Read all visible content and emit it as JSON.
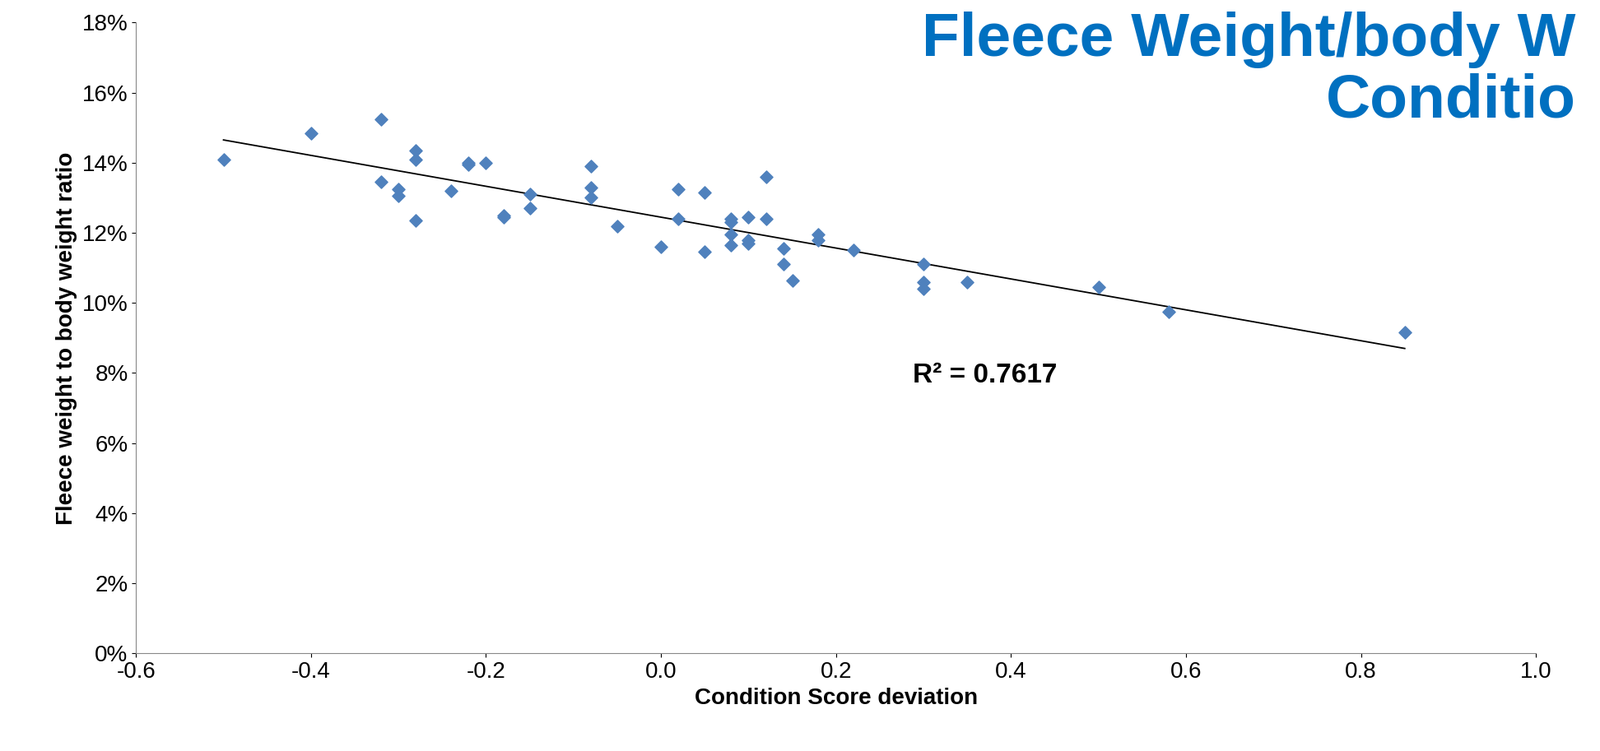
{
  "chart_data": {
    "type": "scatter",
    "title": "Fleece Weight/body W\nConditio",
    "x_label": "Condition Score deviation",
    "y_label": "Fleece weight to body weight ratio",
    "annotations": [
      "R² = 0.7617"
    ],
    "series": [
      {
        "type": "scatter",
        "color": "#4f81bd",
        "marker": "diamond",
        "x": [
          -0.5,
          -0.4,
          -0.32,
          -0.32,
          -0.3,
          -0.3,
          -0.28,
          -0.28,
          -0.28,
          -0.24,
          -0.22,
          -0.22,
          -0.2,
          -0.18,
          -0.18,
          -0.15,
          -0.15,
          -0.08,
          -0.08,
          -0.08,
          -0.05,
          0.0,
          0.02,
          0.02,
          0.05,
          0.05,
          0.08,
          0.08,
          0.08,
          0.08,
          0.1,
          0.1,
          0.1,
          0.12,
          0.12,
          0.14,
          0.14,
          0.15,
          0.18,
          0.18,
          0.22,
          0.3,
          0.3,
          0.3,
          0.35,
          0.5,
          0.58,
          0.85
        ],
        "values": [
          14.1,
          14.85,
          15.25,
          13.45,
          13.25,
          13.05,
          14.35,
          14.1,
          12.35,
          13.2,
          14.0,
          13.95,
          14.0,
          12.5,
          12.45,
          13.1,
          12.7,
          13.9,
          13.3,
          13.0,
          12.2,
          11.6,
          13.25,
          12.4,
          13.15,
          11.45,
          12.4,
          12.3,
          11.95,
          11.65,
          12.45,
          11.8,
          11.7,
          13.6,
          12.4,
          11.55,
          11.1,
          10.65,
          11.95,
          11.8,
          11.5,
          11.1,
          10.6,
          10.4,
          10.6,
          10.45,
          9.75,
          9.15
        ]
      },
      {
        "type": "line",
        "color": "#000000",
        "line_style": "solid",
        "x": [
          -0.5,
          0.85
        ],
        "values": [
          14.65,
          8.7
        ]
      }
    ],
    "xlim": [
      -0.6,
      1.0
    ],
    "xticks": [
      -0.6,
      -0.4,
      -0.2,
      0.0,
      0.2,
      0.4,
      0.6,
      0.8,
      1.0
    ],
    "ylim": [
      0,
      18
    ],
    "yticks": [
      {
        "value": 0,
        "label": "0%"
      },
      {
        "value": 2,
        "label": "2%"
      },
      {
        "value": 4,
        "label": "4%"
      },
      {
        "value": 6,
        "label": "6%"
      },
      {
        "value": 8,
        "label": "8%"
      },
      {
        "value": 10,
        "label": "10%"
      },
      {
        "value": 12,
        "label": "12%"
      },
      {
        "value": 14,
        "label": "14%"
      },
      {
        "value": 16,
        "label": "16%"
      },
      {
        "value": 18,
        "label": "18%"
      }
    ],
    "grid": false
  }
}
